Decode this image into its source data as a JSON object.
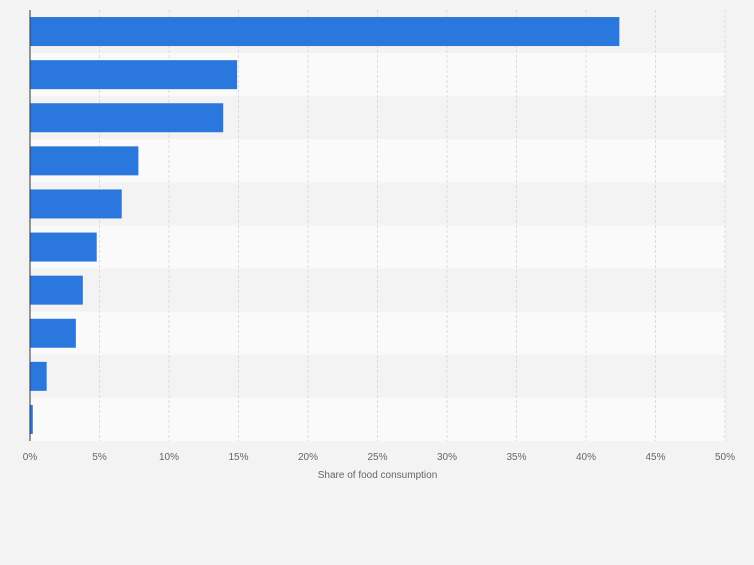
{
  "chart_data": {
    "type": "bar",
    "orientation": "horizontal",
    "categories": [
      "",
      "",
      "",
      "",
      "",
      "",
      "",
      "",
      "",
      ""
    ],
    "values": [
      42.4,
      14.9,
      13.9,
      7.8,
      6.6,
      4.8,
      3.8,
      3.3,
      1.2,
      0.2
    ],
    "xlabel": "Share of food consumption",
    "xlim": [
      0,
      50
    ],
    "ticks": [
      0,
      5,
      10,
      15,
      20,
      25,
      30,
      35,
      40,
      45,
      50
    ],
    "tick_labels": [
      "0%",
      "5%",
      "10%",
      "15%",
      "20%",
      "25%",
      "30%",
      "35%",
      "40%",
      "45%",
      "50%"
    ],
    "grid": true,
    "bar_color": "#2a78de",
    "band_colors": [
      "#f3f3f3",
      "#fafafa"
    ],
    "gridline_color": "#dcdcdc",
    "axis_color": "#333333",
    "label_color": "#666666",
    "background": "#f3f3f3"
  }
}
